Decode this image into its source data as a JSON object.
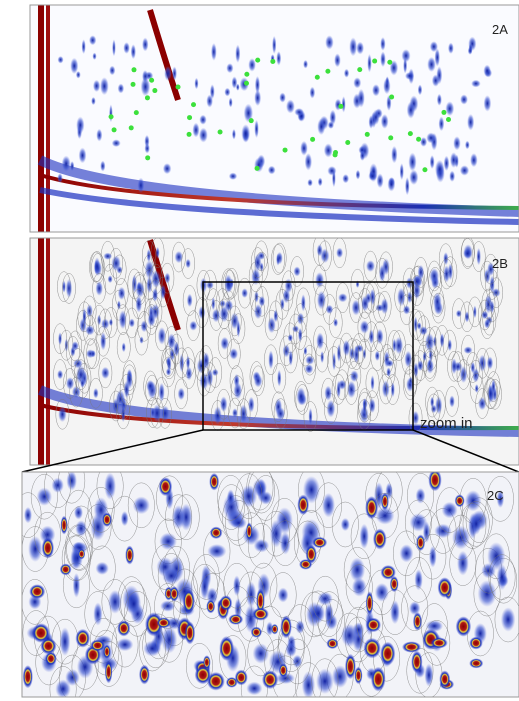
{
  "panels": [
    {
      "label": "2A"
    },
    {
      "label": "2B"
    },
    {
      "label": "2C"
    }
  ],
  "annotation": "zoom in"
}
